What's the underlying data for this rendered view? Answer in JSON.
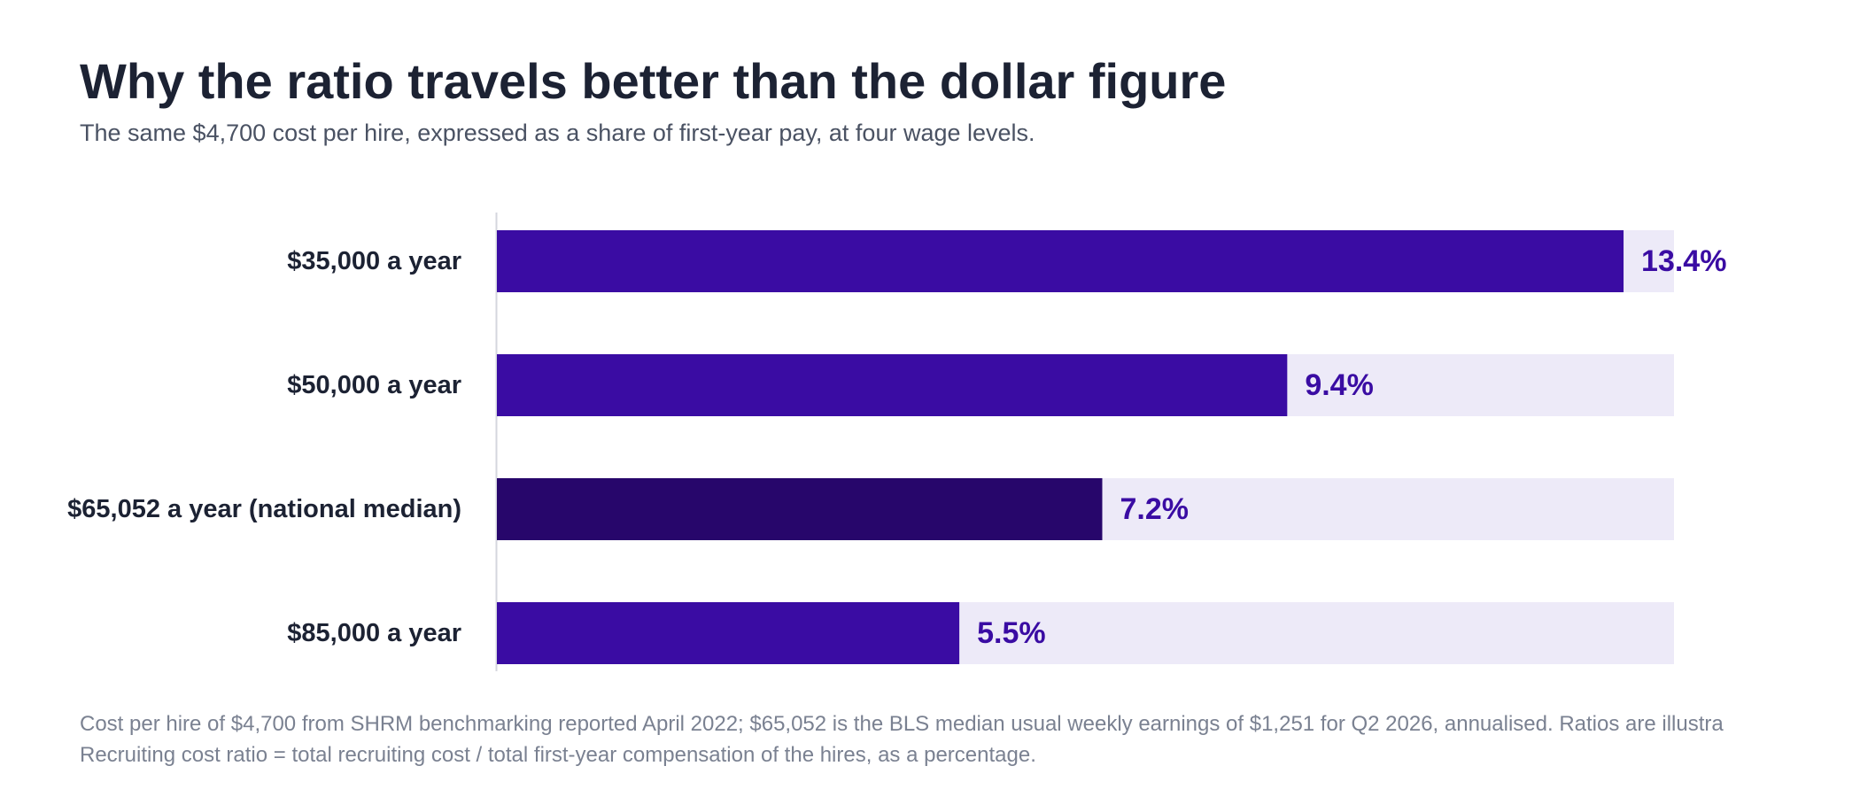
{
  "header": {
    "title": "Why the ratio travels better than the dollar figure",
    "subtitle": "The same $4,700 cost per hire, expressed as a share of first-year pay, at four wage levels."
  },
  "chart_data": {
    "type": "bar",
    "orientation": "horizontal",
    "categories": [
      "$35,000 a year",
      "$50,000 a year",
      "$65,052 a year (national median)",
      "$85,000 a year"
    ],
    "values": [
      13.4,
      9.4,
      7.2,
      5.5
    ],
    "value_labels": [
      "13.4%",
      "9.4%",
      "7.2%",
      "5.5%"
    ],
    "highlight_index": 2,
    "xlim": [
      0,
      14
    ],
    "grid": false,
    "colors": {
      "bar": "#3a0ca3",
      "highlight": "#27066b",
      "track": "#edeaf8",
      "value_label": "#3a0ca3",
      "category_label": "#1c2233",
      "axis": "#d4d6de"
    }
  },
  "footnote": {
    "line1": "Cost per hire of $4,700 from SHRM benchmarking reported April 2022; $65,052 is the BLS median usual weekly earnings of $1,251 for Q2 2026, annualised. Ratios are illustra",
    "line2": "Recruiting cost ratio = total recruiting cost / total first-year compensation of the hires, as a percentage."
  }
}
